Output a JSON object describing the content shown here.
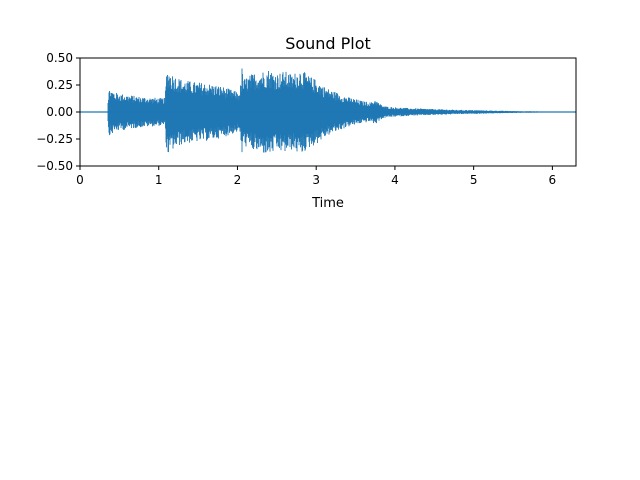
{
  "chart_data": {
    "type": "line",
    "title": "Sound Plot",
    "xlabel": "Time",
    "ylabel": "",
    "xlim": [
      0,
      6.3
    ],
    "ylim": [
      -0.5,
      0.5
    ],
    "xticks": [
      0,
      1,
      2,
      3,
      4,
      5,
      6
    ],
    "xtick_labels": [
      "0",
      "1",
      "2",
      "3",
      "4",
      "5",
      "6"
    ],
    "yticks": [
      0.5,
      0.25,
      0.0,
      -0.25,
      -0.5
    ],
    "ytick_labels": [
      "0.50",
      "0.25",
      "0.00",
      "−0.25",
      "−0.50"
    ],
    "grid": false,
    "series": [
      {
        "color": "#1f77b4",
        "envelope": {
          "time": [
            0,
            0.35,
            0.36,
            0.38,
            0.45,
            0.6,
            0.8,
            1.0,
            1.08,
            1.1,
            1.12,
            1.15,
            1.2,
            1.3,
            1.45,
            1.6,
            1.8,
            1.95,
            2.02,
            2.05,
            2.06,
            2.07,
            2.1,
            2.2,
            2.3,
            2.4,
            2.5,
            2.6,
            2.7,
            2.8,
            2.9,
            3.0,
            3.1,
            3.2,
            3.3,
            3.4,
            3.5,
            3.6,
            3.7,
            3.75,
            3.8,
            3.85,
            3.9,
            4.0,
            4.2,
            4.4,
            4.6,
            4.8,
            5.0,
            5.2,
            5.4,
            5.6,
            5.8,
            6.0,
            6.2,
            6.3
          ],
          "amplitude": [
            0.0,
            0.0,
            0.2,
            0.22,
            0.18,
            0.16,
            0.14,
            0.13,
            0.13,
            0.38,
            0.4,
            0.37,
            0.34,
            0.3,
            0.28,
            0.27,
            0.24,
            0.2,
            0.18,
            0.3,
            0.45,
            0.3,
            0.32,
            0.36,
            0.38,
            0.4,
            0.36,
            0.38,
            0.35,
            0.4,
            0.34,
            0.3,
            0.24,
            0.2,
            0.17,
            0.14,
            0.12,
            0.1,
            0.09,
            0.12,
            0.08,
            0.06,
            0.05,
            0.045,
            0.035,
            0.03,
            0.025,
            0.02,
            0.018,
            0.014,
            0.011,
            0.008,
            0.006,
            0.004,
            0.003,
            0.002
          ]
        }
      }
    ]
  }
}
